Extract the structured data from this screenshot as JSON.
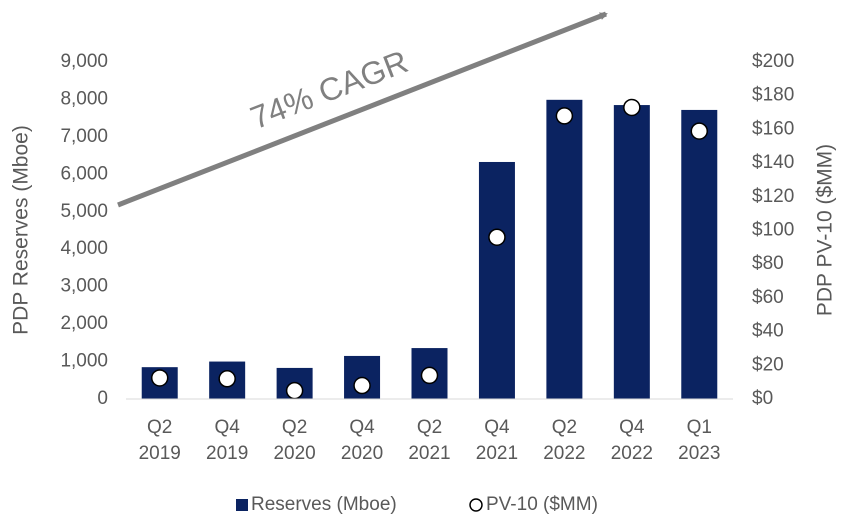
{
  "chart_data": {
    "type": "bar",
    "categories": [
      [
        "Q2",
        "2019"
      ],
      [
        "Q4",
        "2019"
      ],
      [
        "Q2",
        "2020"
      ],
      [
        "Q4",
        "2020"
      ],
      [
        "Q2",
        "2021"
      ],
      [
        "Q4",
        "2021"
      ],
      [
        "Q2",
        "2022"
      ],
      [
        "Q4",
        "2022"
      ],
      [
        "Q1",
        "2023"
      ]
    ],
    "y_label": "PDP Reserves (Mboe)",
    "y2_label": "PDP PV-10 ($MM)",
    "annotation": "74% CAGR",
    "series": [
      {
        "name": "Reserves (Mboe)",
        "color": "#0b2361",
        "values": [
          850,
          1000,
          830,
          1150,
          1360,
          6330,
          7990,
          7850,
          7720
        ]
      },
      {
        "name": "PV-10 ($MM)",
        "type": "scatter",
        "axis": "y2",
        "color": "#ffffff",
        "values": [
          12.5,
          12,
          5,
          8,
          14,
          96,
          168,
          173,
          159
        ]
      }
    ],
    "ylim": [
      0,
      9000
    ],
    "yticks": [
      0,
      {
        "value": 1000,
        "label": "1,000"
      },
      {
        "value": 2000,
        "label": "2,000"
      },
      {
        "value": 3000,
        "label": "3,000"
      },
      {
        "value": 4000,
        "label": "4,000"
      },
      {
        "value": 5000,
        "label": "5,000"
      },
      {
        "value": 6000,
        "label": "6,000"
      },
      {
        "value": 7000,
        "label": "7,000"
      },
      {
        "value": 8000,
        "label": "8,000"
      },
      {
        "value": 9000,
        "label": "9,000"
      }
    ],
    "y2lim": [
      0,
      200
    ],
    "y2ticks": [
      {
        "value": 0,
        "label": "$0"
      },
      {
        "value": 20,
        "label": "$20"
      },
      {
        "value": 40,
        "label": "$40"
      },
      {
        "value": 60,
        "label": "$60"
      },
      {
        "value": 80,
        "label": "$80"
      },
      {
        "value": 100,
        "label": "$100"
      },
      {
        "value": 120,
        "label": "$120"
      },
      {
        "value": 140,
        "label": "$140"
      },
      {
        "value": 160,
        "label": "$160"
      },
      {
        "value": 180,
        "label": "$180"
      },
      {
        "value": 200,
        "label": "$200"
      }
    ],
    "legend": "bottom",
    "grid": false
  }
}
